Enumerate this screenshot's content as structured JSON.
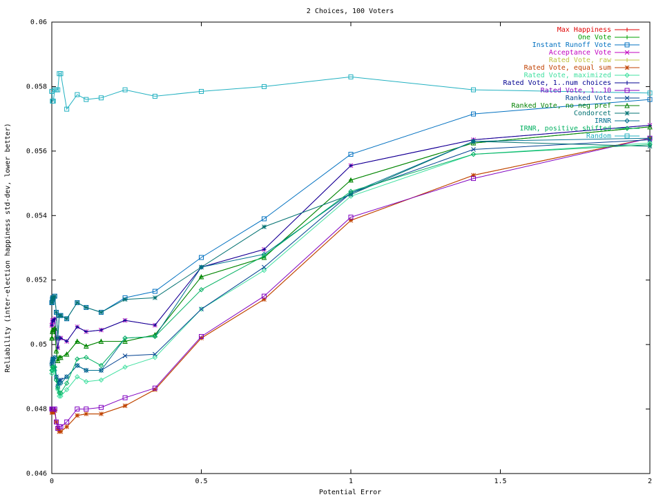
{
  "chart_data": {
    "type": "line",
    "title": "2 Choices, 100 Voters",
    "xlabel": "Potential Error",
    "ylabel": "Reliability (inter-election happiness std-dev, lower better)",
    "xlim": [
      0,
      2
    ],
    "ylim": [
      0.046,
      0.06
    ],
    "xticks": [
      0,
      0.5,
      1,
      1.5,
      2
    ],
    "xtick_labels": [
      "0",
      "0.5",
      "1",
      "1.5",
      "2"
    ],
    "yticks": [
      0.046,
      0.048,
      0.05,
      0.052,
      0.054,
      0.056,
      0.058,
      0.06
    ],
    "ytick_labels": [
      "0.046",
      "0.048",
      "0.05",
      "0.052",
      "0.054",
      "0.056",
      "0.058",
      "0.06"
    ],
    "grid": false,
    "legend_position": "top-right",
    "x": [
      0,
      0.001,
      0.002,
      0.003,
      0.005,
      0.01,
      0.015,
      0.02,
      0.025,
      0.03,
      0.05,
      0.085,
      0.115,
      0.165,
      0.245,
      0.345,
      0.5,
      0.71,
      1.0,
      1.41,
      2.0
    ],
    "series": [
      {
        "name": "Max Happiness",
        "color": "#e00000",
        "marker": "plus",
        "values": [
          0.0479,
          0.0479,
          0.0479,
          0.0479,
          0.0479,
          0.04795,
          0.0476,
          0.0474,
          0.0473,
          0.0473,
          0.04745,
          0.0478,
          0.04785,
          0.04785,
          0.0481,
          0.0486,
          0.0502,
          0.0514,
          0.05385,
          0.05525,
          0.0564
        ]
      },
      {
        "name": "One Vote",
        "color": "#00a000",
        "marker": "plus",
        "values": [
          0.0502,
          0.0502,
          0.0504,
          0.05045,
          0.05045,
          0.0505,
          0.0498,
          0.0495,
          0.0496,
          0.0496,
          0.0497,
          0.0501,
          0.04995,
          0.0501,
          0.0501,
          0.0503,
          0.0521,
          0.0527,
          0.0551,
          0.05625,
          0.05675
        ]
      },
      {
        "name": "Instant Runoff Vote",
        "color": "#0070c0",
        "marker": "box",
        "values": [
          0.0513,
          0.0513,
          0.0514,
          0.05145,
          0.05145,
          0.0515,
          0.051,
          0.0502,
          0.0509,
          0.0509,
          0.0508,
          0.0513,
          0.05115,
          0.051,
          0.05145,
          0.05165,
          0.0527,
          0.0539,
          0.0559,
          0.05715,
          0.0576
        ]
      },
      {
        "name": "Acceptance Vote",
        "color": "#c000c0",
        "marker": "x",
        "values": [
          0.0506,
          0.0506,
          0.0507,
          0.05075,
          0.05075,
          0.0508,
          0.0502,
          0.0499,
          0.0502,
          0.0502,
          0.0501,
          0.05055,
          0.0504,
          0.05045,
          0.05075,
          0.0506,
          0.0524,
          0.05295,
          0.05555,
          0.05635,
          0.0568
        ]
      },
      {
        "name": "Rated Vote, raw",
        "color": "#c0c040",
        "marker": "plus",
        "values": [
          0.0479,
          0.0479,
          0.0479,
          0.0479,
          0.0479,
          0.04795,
          0.0476,
          0.0474,
          0.0473,
          0.0473,
          0.04745,
          0.0478,
          0.04785,
          0.04785,
          0.0481,
          0.0486,
          0.0502,
          0.0514,
          0.05385,
          0.05525,
          0.0564
        ]
      },
      {
        "name": "Rated Vote, equal sum",
        "color": "#c04000",
        "marker": "star",
        "values": [
          0.0479,
          0.0479,
          0.0479,
          0.0479,
          0.0479,
          0.04795,
          0.0476,
          0.0474,
          0.0473,
          0.0473,
          0.04745,
          0.0478,
          0.04785,
          0.04785,
          0.0481,
          0.0486,
          0.0502,
          0.0514,
          0.05385,
          0.05525,
          0.0564
        ]
      },
      {
        "name": "Rated Vote, maximized",
        "color": "#40e0a0",
        "marker": "diamond",
        "values": [
          0.0491,
          0.0491,
          0.0492,
          0.0492,
          0.0492,
          0.0492,
          0.0489,
          0.0486,
          0.0484,
          0.0484,
          0.0486,
          0.049,
          0.04885,
          0.0489,
          0.0493,
          0.0496,
          0.0511,
          0.0523,
          0.0546,
          0.0559,
          0.05625
        ]
      },
      {
        "name": "Rated Vote, 1..num choices",
        "color": "#000090",
        "marker": "plus",
        "values": [
          0.0506,
          0.0506,
          0.0507,
          0.05075,
          0.05075,
          0.0508,
          0.0502,
          0.0499,
          0.0502,
          0.0502,
          0.0501,
          0.05055,
          0.0504,
          0.05045,
          0.05075,
          0.0506,
          0.0524,
          0.05295,
          0.05555,
          0.05635,
          0.0568
        ]
      },
      {
        "name": "Rated Vote, 1..10",
        "color": "#8000c0",
        "marker": "box",
        "values": [
          0.048,
          0.048,
          0.048,
          0.048,
          0.048,
          0.048,
          0.0476,
          0.0474,
          0.04745,
          0.04745,
          0.0476,
          0.048,
          0.048,
          0.04805,
          0.04835,
          0.04865,
          0.05025,
          0.0515,
          0.05395,
          0.05515,
          0.0564
        ]
      },
      {
        "name": "Ranked Vote",
        "color": "#004090",
        "marker": "x",
        "values": [
          0.0494,
          0.0494,
          0.0495,
          0.04955,
          0.04955,
          0.0496,
          0.049,
          0.0488,
          0.0489,
          0.0489,
          0.049,
          0.04935,
          0.0492,
          0.0492,
          0.04965,
          0.0497,
          0.0511,
          0.0524,
          0.0547,
          0.05605,
          0.05635
        ]
      },
      {
        "name": "Ranked Vote, no neg pref",
        "color": "#008000",
        "marker": "triangle",
        "values": [
          0.0502,
          0.0502,
          0.0504,
          0.05045,
          0.05045,
          0.0505,
          0.0498,
          0.0495,
          0.0496,
          0.0496,
          0.0497,
          0.0501,
          0.04995,
          0.0501,
          0.0501,
          0.0503,
          0.0521,
          0.0527,
          0.0551,
          0.05625,
          0.05675
        ]
      },
      {
        "name": "Condorcet",
        "color": "#007070",
        "marker": "star",
        "values": [
          0.0513,
          0.0513,
          0.0514,
          0.05145,
          0.05145,
          0.0515,
          0.051,
          0.0502,
          0.0509,
          0.0509,
          0.0508,
          0.0513,
          0.05115,
          0.051,
          0.0514,
          0.05145,
          0.0524,
          0.05365,
          0.05465,
          0.0563,
          0.05615
        ]
      },
      {
        "name": "IRNR",
        "color": "#007090",
        "marker": "diamond",
        "values": [
          0.0494,
          0.0494,
          0.0495,
          0.04955,
          0.04955,
          0.0496,
          0.049,
          0.0487,
          0.0488,
          0.0488,
          0.049,
          0.04935,
          0.0492,
          0.0492,
          0.0502,
          0.05025,
          0.0524,
          0.0528,
          0.0547,
          0.0563,
          0.0564
        ]
      },
      {
        "name": "IRNR, positive shifted",
        "color": "#00b060",
        "marker": "diamond",
        "values": [
          0.0492,
          0.0492,
          0.0493,
          0.0493,
          0.0493,
          0.0493,
          0.0489,
          0.04865,
          0.0485,
          0.0485,
          0.0488,
          0.04955,
          0.0496,
          0.04935,
          0.0502,
          0.05025,
          0.0517,
          0.05275,
          0.05475,
          0.0559,
          0.0562
        ]
      },
      {
        "name": "Random",
        "color": "#20b0c0",
        "marker": "box",
        "values": [
          0.05785,
          0.05785,
          0.05755,
          0.05755,
          0.05755,
          0.0579,
          0.0579,
          0.0579,
          0.0584,
          0.0584,
          0.0573,
          0.05775,
          0.0576,
          0.05765,
          0.0579,
          0.0577,
          0.05785,
          0.058,
          0.0583,
          0.0579,
          0.0578
        ]
      }
    ]
  }
}
